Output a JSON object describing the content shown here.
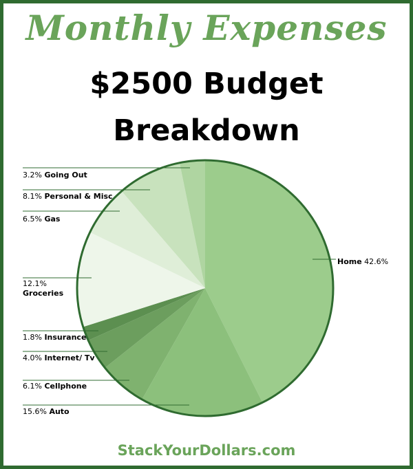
{
  "header": {
    "title_line1": "Monthly Expenses",
    "title_line2": "$2500 Budget",
    "title_line3": "Breakdown"
  },
  "footer": {
    "text": "StackYourDollars.com"
  },
  "colors": {
    "border": "#2f6b30",
    "title_green": "#6aa45a",
    "pie_outline": "#2f6b30"
  },
  "chart_data": {
    "type": "pie",
    "title": "",
    "slices": [
      {
        "pct": "42.6%",
        "name": "Home",
        "value": 42.6,
        "color": "#9ccc8c"
      },
      {
        "pct": "15.6%",
        "name": "Auto",
        "value": 15.6,
        "color": "#8cc07c"
      },
      {
        "pct": "6.1%",
        "name": "Cellphone",
        "value": 6.1,
        "color": "#7fb26f"
      },
      {
        "pct": "4.0%",
        "name": "Internet/ Tv",
        "value": 4.0,
        "color": "#6c9e5e"
      },
      {
        "pct": "1.8%",
        "name": "Insurance",
        "value": 1.8,
        "color": "#5c8f50"
      },
      {
        "pct": "12.1%",
        "name": "Groceries",
        "value": 12.1,
        "color": "#eef6ea"
      },
      {
        "pct": "6.5%",
        "name": "Gas",
        "value": 6.5,
        "color": "#dfeed8"
      },
      {
        "pct": "8.1%",
        "name": "Personal & Misc",
        "value": 8.1,
        "color": "#c8e2bd"
      },
      {
        "pct": "3.2%",
        "name": "Going Out",
        "value": 3.2,
        "color": "#afd5a1"
      }
    ]
  }
}
